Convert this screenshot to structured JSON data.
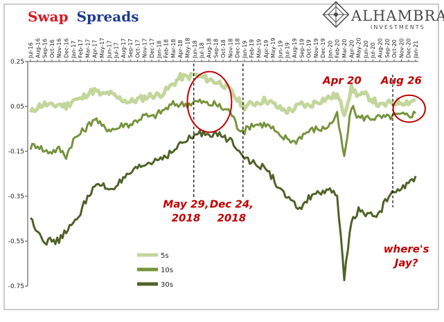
{
  "title": {
    "part1": "Swap",
    "part2": "Spreads",
    "color1": "#d71920",
    "color2": "#1f3a93"
  },
  "logo": {
    "name": "ALHAMBRA",
    "sub": "INVESTMENTS"
  },
  "chart_data": {
    "type": "line",
    "title": "Swap Spreads",
    "xlabel": "",
    "ylabel": "",
    "x_range": [
      "2016-07",
      "2021-01"
    ],
    "ylim": [
      -0.75,
      0.25
    ],
    "y_ticks": [
      "0.25",
      "0.05",
      "-0.15",
      "-0.35",
      "-0.55",
      "-0.75"
    ],
    "x_ticks": [
      "Jul-16",
      "Aug-16",
      "Sep-16",
      "Oct-16",
      "Nov-16",
      "Dec-16",
      "Jan-17",
      "Feb-17",
      "Mar-17",
      "Apr-17",
      "May-17",
      "Jun-17",
      "Jul-17",
      "Aug-17",
      "Sep-17",
      "Oct-17",
      "Nov-17",
      "Dec-17",
      "Jan-18",
      "Feb-18",
      "Mar-18",
      "Apr-18",
      "May-18",
      "Jun-18",
      "Jul-18",
      "Aug-18",
      "Sep-18",
      "Oct-18",
      "Nov-18",
      "Dec-18",
      "Jan-19",
      "Feb-19",
      "Mar-19",
      "Apr-19",
      "May-19",
      "Jun-19",
      "Jul-19",
      "Aug-19",
      "Sep-19",
      "Oct-19",
      "Nov-19",
      "Dec-19",
      "Jan-20",
      "Feb-20",
      "Mar-20",
      "Apr-20",
      "May-20",
      "Jun-20",
      "Jul-20",
      "Aug-20",
      "Sep-20",
      "Oct-20",
      "Nov-20",
      "Dec-20",
      "Jan-21"
    ],
    "grid": false,
    "legend_position": "bottom-left",
    "series": [
      {
        "name": "5s",
        "color": "#c3d69b",
        "points": [
          [
            0,
            0.02
          ],
          [
            1,
            0.05
          ],
          [
            2,
            0.06
          ],
          [
            3,
            0.05
          ],
          [
            4,
            0.06
          ],
          [
            5,
            0.05
          ],
          [
            6,
            0.08
          ],
          [
            7,
            0.08
          ],
          [
            8,
            0.11
          ],
          [
            9,
            0.12
          ],
          [
            10,
            0.1
          ],
          [
            11,
            0.11
          ],
          [
            12,
            0.09
          ],
          [
            13,
            0.08
          ],
          [
            14,
            0.07
          ],
          [
            15,
            0.08
          ],
          [
            16,
            0.09
          ],
          [
            17,
            0.1
          ],
          [
            18,
            0.1
          ],
          [
            19,
            0.12
          ],
          [
            20,
            0.15
          ],
          [
            21,
            0.18
          ],
          [
            22,
            0.18
          ],
          [
            23,
            0.19
          ],
          [
            24,
            0.18
          ],
          [
            25,
            0.17
          ],
          [
            26,
            0.16
          ],
          [
            27,
            0.15
          ],
          [
            28,
            0.12
          ],
          [
            29,
            0.08
          ],
          [
            30,
            0.05
          ],
          [
            31,
            0.06
          ],
          [
            32,
            0.07
          ],
          [
            33,
            0.08
          ],
          [
            34,
            0.06
          ],
          [
            35,
            0.04
          ],
          [
            36,
            0.03
          ],
          [
            37,
            0.04
          ],
          [
            38,
            0.06
          ],
          [
            39,
            0.05
          ],
          [
            40,
            0.07
          ],
          [
            41,
            0.08
          ],
          [
            42,
            0.09
          ],
          [
            43,
            0.1
          ],
          [
            44,
            0.02
          ],
          [
            45,
            0.13
          ],
          [
            46,
            0.1
          ],
          [
            47,
            0.1
          ],
          [
            48,
            0.08
          ],
          [
            49,
            0.05
          ],
          [
            50,
            0.06
          ],
          [
            51,
            0.07
          ],
          [
            52,
            0.07
          ],
          [
            53,
            0.07
          ],
          [
            54,
            0.08
          ]
        ]
      },
      {
        "name": "10s",
        "color": "#77933c",
        "points": [
          [
            0,
            -0.13
          ],
          [
            1,
            -0.12
          ],
          [
            2,
            -0.15
          ],
          [
            3,
            -0.15
          ],
          [
            4,
            -0.14
          ],
          [
            5,
            -0.17
          ],
          [
            6,
            -0.1
          ],
          [
            7,
            -0.07
          ],
          [
            8,
            -0.04
          ],
          [
            9,
            0.0
          ],
          [
            10,
            -0.04
          ],
          [
            11,
            -0.05
          ],
          [
            12,
            -0.05
          ],
          [
            13,
            -0.03
          ],
          [
            14,
            -0.03
          ],
          [
            15,
            -0.01
          ],
          [
            16,
            0.01
          ],
          [
            17,
            0.0
          ],
          [
            18,
            0.02
          ],
          [
            19,
            0.04
          ],
          [
            20,
            0.06
          ],
          [
            21,
            0.06
          ],
          [
            22,
            0.06
          ],
          [
            23,
            0.07
          ],
          [
            24,
            0.07
          ],
          [
            25,
            0.06
          ],
          [
            26,
            0.06
          ],
          [
            27,
            0.04
          ],
          [
            28,
            0.03
          ],
          [
            29,
            -0.04
          ],
          [
            30,
            -0.06
          ],
          [
            31,
            -0.03
          ],
          [
            32,
            -0.03
          ],
          [
            33,
            -0.03
          ],
          [
            34,
            -0.05
          ],
          [
            35,
            -0.09
          ],
          [
            36,
            -0.09
          ],
          [
            37,
            -0.11
          ],
          [
            38,
            -0.08
          ],
          [
            39,
            -0.06
          ],
          [
            40,
            -0.05
          ],
          [
            41,
            -0.05
          ],
          [
            42,
            -0.03
          ],
          [
            43,
            0.01
          ],
          [
            44,
            -0.18
          ],
          [
            45,
            0.05
          ],
          [
            46,
            0.0
          ],
          [
            47,
            0.0
          ],
          [
            48,
            0.0
          ],
          [
            49,
            0.0
          ],
          [
            50,
            0.0
          ],
          [
            51,
            0.01
          ],
          [
            52,
            0.01
          ],
          [
            53,
            0.01
          ],
          [
            54,
            0.02
          ]
        ]
      },
      {
        "name": "30s",
        "color": "#4f6228",
        "points": [
          [
            0,
            -0.45
          ],
          [
            1,
            -0.5
          ],
          [
            2,
            -0.55
          ],
          [
            3,
            -0.55
          ],
          [
            4,
            -0.55
          ],
          [
            5,
            -0.5
          ],
          [
            6,
            -0.48
          ],
          [
            7,
            -0.42
          ],
          [
            8,
            -0.35
          ],
          [
            9,
            -0.31
          ],
          [
            10,
            -0.3
          ],
          [
            11,
            -0.32
          ],
          [
            12,
            -0.3
          ],
          [
            13,
            -0.28
          ],
          [
            14,
            -0.25
          ],
          [
            15,
            -0.23
          ],
          [
            16,
            -0.21
          ],
          [
            17,
            -0.2
          ],
          [
            18,
            -0.18
          ],
          [
            19,
            -0.17
          ],
          [
            20,
            -0.15
          ],
          [
            21,
            -0.12
          ],
          [
            22,
            -0.1
          ],
          [
            23,
            -0.08
          ],
          [
            24,
            -0.07
          ],
          [
            25,
            -0.07
          ],
          [
            26,
            -0.07
          ],
          [
            27,
            -0.09
          ],
          [
            28,
            -0.1
          ],
          [
            29,
            -0.13
          ],
          [
            30,
            -0.17
          ],
          [
            31,
            -0.2
          ],
          [
            32,
            -0.22
          ],
          [
            33,
            -0.22
          ],
          [
            34,
            -0.27
          ],
          [
            35,
            -0.32
          ],
          [
            36,
            -0.36
          ],
          [
            37,
            -0.39
          ],
          [
            38,
            -0.4
          ],
          [
            39,
            -0.36
          ],
          [
            40,
            -0.33
          ],
          [
            41,
            -0.34
          ],
          [
            42,
            -0.33
          ],
          [
            43,
            -0.34
          ],
          [
            44,
            -0.72
          ],
          [
            45,
            -0.46
          ],
          [
            46,
            -0.41
          ],
          [
            47,
            -0.43
          ],
          [
            48,
            -0.44
          ],
          [
            49,
            -0.42
          ],
          [
            50,
            -0.36
          ],
          [
            51,
            -0.33
          ],
          [
            52,
            -0.31
          ],
          [
            53,
            -0.3
          ],
          [
            54,
            -0.26
          ]
        ]
      }
    ],
    "vlines": [
      {
        "x": 22.9,
        "label": "May 29, 2018"
      },
      {
        "x": 29.8,
        "label": "Dec 24, 2018"
      },
      {
        "x": 50.8,
        "label": "Aug 26"
      }
    ],
    "ellipses": [
      {
        "cx": 25.1,
        "cy": 0.07,
        "rx": 3.1,
        "ry": 0.135
      },
      {
        "cx": 53.1,
        "cy": 0.04,
        "rx": 2.25,
        "ry": 0.06
      }
    ],
    "annotations": [
      {
        "lines": [
          "Apr 20"
        ],
        "x": 43.7,
        "y": 0.15
      },
      {
        "lines": [
          "Aug 26"
        ],
        "x": 52.0,
        "y": 0.15
      },
      {
        "lines": [
          "May 29,",
          "2018"
        ],
        "x": 21.8,
        "y": -0.4
      },
      {
        "lines": [
          "Dec 24,",
          "2018"
        ],
        "x": 28.2,
        "y": -0.4
      },
      {
        "lines": [
          "where's",
          "Jay?"
        ],
        "x": 52.7,
        "y": -0.6
      }
    ],
    "legend": [
      {
        "label": "5s",
        "color": "#c3d69b"
      },
      {
        "label": "10s",
        "color": "#77933c"
      },
      {
        "label": "30s",
        "color": "#4f6228"
      }
    ]
  }
}
